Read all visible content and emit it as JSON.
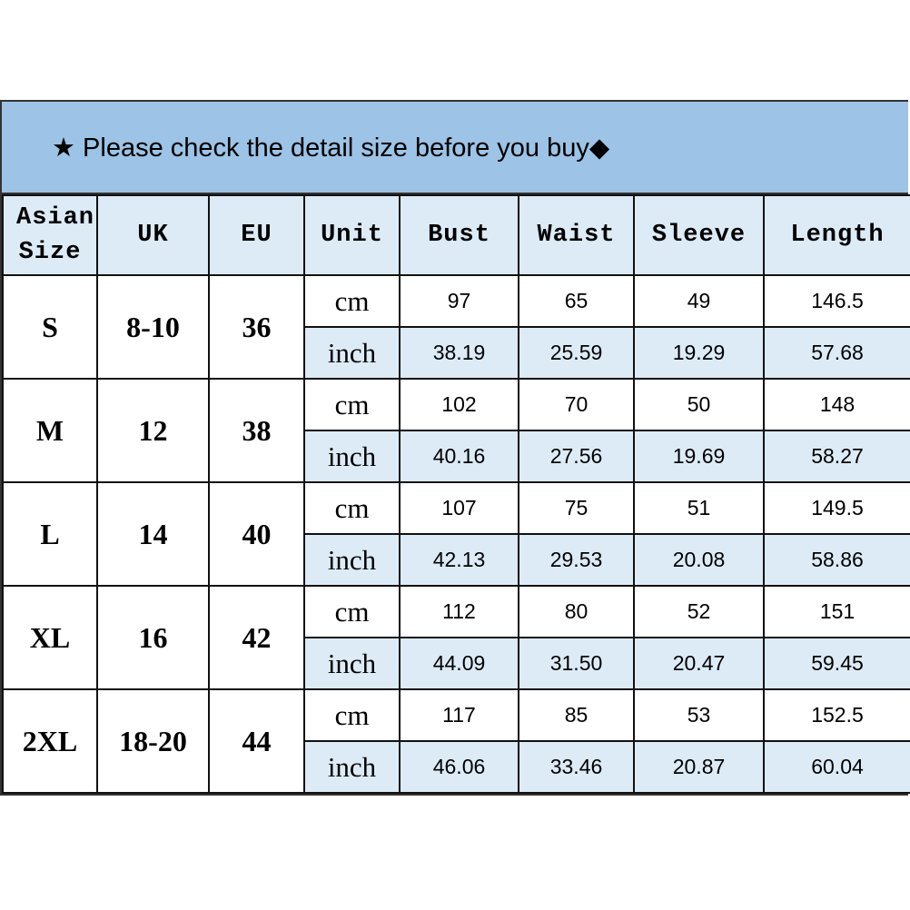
{
  "banner": {
    "text": "★ Please check the detail size before you buy◆",
    "color": "#9dc3e6"
  },
  "colors": {
    "header_bg": "#ddebf7",
    "inch_row_bg": "#ddebf7"
  },
  "headers": [
    "Asian Size",
    "UK",
    "EU",
    "Unit",
    "Bust",
    "Waist",
    "Sleeve",
    "Length"
  ],
  "rows": [
    {
      "size": "S",
      "uk": "8-10",
      "eu": "36",
      "cm": [
        "97",
        "65",
        "49",
        "146.5"
      ],
      "inch": [
        "38.19",
        "25.59",
        "19.29",
        "57.68"
      ]
    },
    {
      "size": "M",
      "uk": "12",
      "eu": "38",
      "cm": [
        "102",
        "70",
        "50",
        "148"
      ],
      "inch": [
        "40.16",
        "27.56",
        "19.69",
        "58.27"
      ]
    },
    {
      "size": "L",
      "uk": "14",
      "eu": "40",
      "cm": [
        "107",
        "75",
        "51",
        "149.5"
      ],
      "inch": [
        "42.13",
        "29.53",
        "20.08",
        "58.86"
      ]
    },
    {
      "size": "XL",
      "uk": "16",
      "eu": "42",
      "cm": [
        "112",
        "80",
        "52",
        "151"
      ],
      "inch": [
        "44.09",
        "31.50",
        "20.47",
        "59.45"
      ]
    },
    {
      "size": "2XL",
      "uk": "18-20",
      "eu": "44",
      "cm": [
        "117",
        "85",
        "53",
        "152.5"
      ],
      "inch": [
        "46.06",
        "33.46",
        "20.87",
        "60.04"
      ]
    }
  ],
  "units": {
    "cm": "cm",
    "inch": "inch"
  }
}
